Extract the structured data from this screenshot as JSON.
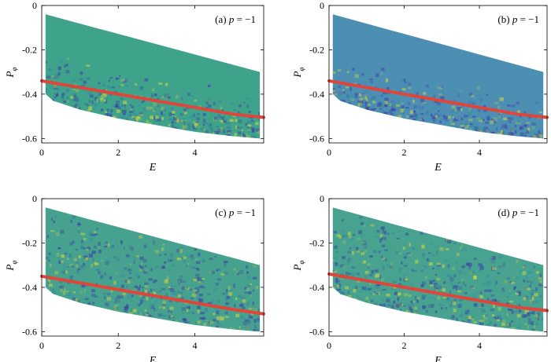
{
  "figure": {
    "panels_layout": "2x2",
    "colors": {
      "accent_line": "#e0453a",
      "map_base_panel_a": "#3fa38c",
      "map_base_panel_b": "#4c8fb3",
      "map_base_panel_c": "#46a28e",
      "map_base_panel_d": "#47a28f",
      "blob_dark": "#3b3fa6",
      "blob_yellow": "#d8d83a"
    }
  },
  "chart_data": [
    {
      "type": "heatmap",
      "panel_label": "(a) p = −1",
      "label_prefix": "(a)",
      "label_var": "p",
      "label_eq": " = −1",
      "xlabel": "E",
      "ylabel": "P",
      "ylabel_sub": "φ",
      "xlim": [
        0,
        5.8
      ],
      "ylim": [
        -0.62,
        0
      ],
      "xticks": [
        0,
        2,
        4
      ],
      "yticks": [
        -0.6,
        -0.4,
        -0.2,
        0
      ],
      "ytick_labels": [
        "-0.6",
        "-0.4",
        "-0.2",
        "0"
      ],
      "grid": false,
      "domain_upper": {
        "x": [
          0.1,
          5.7
        ],
        "y": [
          -0.04,
          -0.3
        ]
      },
      "domain_lower": {
        "x": [
          0.1,
          0.3,
          1,
          2,
          3,
          4,
          5,
          5.7
        ],
        "y": [
          -0.4,
          -0.43,
          -0.47,
          -0.51,
          -0.54,
          -0.57,
          -0.59,
          -0.6
        ]
      },
      "series": [
        {
          "x": [
            0,
            1,
            2,
            3,
            4,
            5,
            5.8
          ],
          "y": [
            -0.34,
            -0.37,
            -0.4,
            -0.43,
            -0.46,
            -0.49,
            -0.505
          ]
        }
      ]
    },
    {
      "type": "heatmap",
      "panel_label": "(b) p = −1",
      "label_prefix": "(b)",
      "label_var": "p",
      "label_eq": " = −1",
      "xlabel": "E",
      "ylabel": "P",
      "ylabel_sub": "φ",
      "xlim": [
        0,
        5.8
      ],
      "ylim": [
        -0.62,
        0
      ],
      "xticks": [
        0,
        2,
        4
      ],
      "yticks": [
        -0.6,
        -0.4,
        -0.2,
        0
      ],
      "ytick_labels": [
        "-0.6",
        "-0.4",
        "-0.2",
        "0"
      ],
      "grid": false,
      "domain_upper": {
        "x": [
          0.1,
          5.7
        ],
        "y": [
          -0.04,
          -0.3
        ]
      },
      "domain_lower": {
        "x": [
          0.1,
          0.3,
          1,
          2,
          3,
          4,
          5,
          5.7
        ],
        "y": [
          -0.4,
          -0.43,
          -0.47,
          -0.51,
          -0.54,
          -0.57,
          -0.59,
          -0.6
        ]
      },
      "series": [
        {
          "x": [
            0,
            1,
            2,
            3,
            4,
            5,
            5.8
          ],
          "y": [
            -0.34,
            -0.37,
            -0.4,
            -0.43,
            -0.46,
            -0.49,
            -0.505
          ]
        }
      ]
    },
    {
      "type": "heatmap",
      "panel_label": "(c) p = −1",
      "label_prefix": "(c)",
      "label_var": "p",
      "label_eq": " = −1",
      "xlabel": "E",
      "ylabel": "P",
      "ylabel_sub": "φ",
      "xlim": [
        0,
        5.8
      ],
      "ylim": [
        -0.62,
        0
      ],
      "xticks": [
        0,
        2,
        4
      ],
      "yticks": [
        -0.6,
        -0.4,
        -0.2,
        0
      ],
      "ytick_labels": [
        "-0.6",
        "-0.4",
        "-0.2",
        "0"
      ],
      "grid": false,
      "domain_upper": {
        "x": [
          0.1,
          5.7
        ],
        "y": [
          -0.04,
          -0.3
        ]
      },
      "domain_lower": {
        "x": [
          0.1,
          0.3,
          1,
          2,
          3,
          4,
          5,
          5.7
        ],
        "y": [
          -0.4,
          -0.43,
          -0.47,
          -0.51,
          -0.54,
          -0.57,
          -0.59,
          -0.6
        ]
      },
      "series": [
        {
          "x": [
            0,
            1,
            2,
            3,
            4,
            5,
            5.8
          ],
          "y": [
            -0.35,
            -0.38,
            -0.41,
            -0.44,
            -0.47,
            -0.5,
            -0.52
          ]
        }
      ]
    },
    {
      "type": "heatmap",
      "panel_label": "(d) p = −1",
      "label_prefix": "(d)",
      "label_var": "p",
      "label_eq": " = −1",
      "xlabel": "E",
      "ylabel": "P",
      "ylabel_sub": "φ",
      "xlim": [
        0,
        5.8
      ],
      "ylim": [
        -0.62,
        0
      ],
      "xticks": [
        0,
        2,
        4
      ],
      "yticks": [
        -0.6,
        -0.4,
        -0.2,
        0
      ],
      "ytick_labels": [
        "-0.6",
        "-0.4",
        "-0.2",
        "0"
      ],
      "grid": false,
      "domain_upper": {
        "x": [
          0.1,
          5.7
        ],
        "y": [
          -0.04,
          -0.3
        ]
      },
      "domain_lower": {
        "x": [
          0.1,
          0.3,
          1,
          2,
          3,
          4,
          5,
          5.7
        ],
        "y": [
          -0.4,
          -0.43,
          -0.47,
          -0.51,
          -0.54,
          -0.57,
          -0.59,
          -0.6
        ]
      },
      "series": [
        {
          "x": [
            0,
            1,
            2,
            3,
            4,
            5,
            5.8
          ],
          "y": [
            -0.34,
            -0.37,
            -0.4,
            -0.43,
            -0.46,
            -0.49,
            -0.505
          ]
        }
      ]
    }
  ]
}
